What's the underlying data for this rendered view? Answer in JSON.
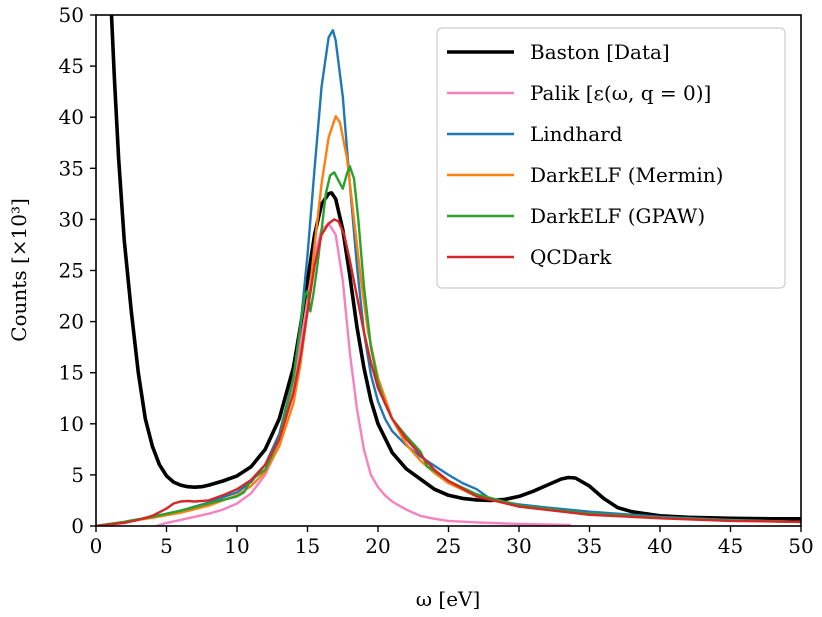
{
  "chart_data": {
    "type": "line",
    "xlabel": "ω [eV]",
    "ylabel": "Counts [×10³]",
    "xlim": [
      0,
      50
    ],
    "ylim": [
      0,
      50
    ],
    "xticks": [
      "0",
      "5",
      "10",
      "15",
      "20",
      "25",
      "30",
      "35",
      "40",
      "45",
      "50"
    ],
    "yticks": [
      "0",
      "5",
      "10",
      "15",
      "20",
      "25",
      "30",
      "35",
      "40",
      "45",
      "50"
    ],
    "legend_position": "top-right",
    "series": [
      {
        "name": "Baston [Data]",
        "color": "#000000",
        "width": 3.6,
        "x": [
          1.1,
          1.3,
          1.6,
          2.0,
          2.5,
          3.0,
          3.5,
          4.0,
          4.5,
          5.0,
          5.5,
          6.0,
          6.5,
          7.0,
          7.5,
          8.0,
          9.0,
          10.0,
          11.0,
          12.0,
          13.0,
          14.0,
          14.5,
          15.0,
          15.5,
          16.0,
          16.5,
          16.7,
          17.0,
          17.5,
          18.0,
          18.5,
          19.0,
          19.5,
          20.0,
          21.0,
          22.0,
          23.0,
          24.0,
          25.0,
          26.0,
          27.0,
          28.0,
          29.0,
          30.0,
          31.0,
          32.0,
          33.0,
          33.5,
          34.0,
          35.0,
          36.0,
          37.0,
          38.0,
          40.0,
          42.0,
          45.0,
          48.0,
          50.0
        ],
        "y": [
          50.0,
          44.0,
          36.0,
          28.0,
          21.0,
          15.0,
          10.5,
          7.8,
          6.0,
          4.9,
          4.3,
          4.0,
          3.85,
          3.8,
          3.85,
          4.0,
          4.4,
          4.9,
          5.8,
          7.5,
          10.5,
          15.5,
          19.5,
          24.0,
          28.5,
          31.5,
          32.5,
          32.6,
          32.0,
          29.0,
          24.5,
          19.5,
          15.5,
          12.3,
          10.0,
          7.2,
          5.6,
          4.6,
          3.6,
          3.0,
          2.7,
          2.55,
          2.5,
          2.6,
          2.9,
          3.4,
          4.0,
          4.6,
          4.75,
          4.7,
          3.9,
          2.7,
          1.8,
          1.4,
          1.0,
          0.85,
          0.75,
          0.7,
          0.7
        ]
      },
      {
        "name": "Palik [ε(ω, q = 0)]",
        "color": "#f781bf",
        "width": 2.4,
        "x": [
          4.3,
          5.0,
          6.0,
          7.0,
          8.0,
          9.0,
          10.0,
          11.0,
          12.0,
          13.0,
          14.0,
          15.0,
          15.5,
          16.0,
          16.5,
          17.0,
          17.5,
          18.0,
          18.5,
          19.0,
          19.5,
          20.0,
          20.5,
          21.0,
          22.0,
          23.0,
          24.0,
          25.0,
          27.0,
          30.0,
          33.6
        ],
        "y": [
          0.0,
          0.3,
          0.6,
          0.9,
          1.2,
          1.6,
          2.2,
          3.2,
          5.0,
          8.0,
          13.5,
          22.0,
          26.5,
          29.0,
          29.6,
          28.5,
          24.0,
          17.0,
          11.5,
          7.5,
          5.0,
          3.8,
          3.0,
          2.4,
          1.6,
          1.0,
          0.7,
          0.5,
          0.35,
          0.2,
          0.1
        ]
      },
      {
        "name": "Lindhard",
        "color": "#1f77b4",
        "width": 2.4,
        "x": [
          0.0,
          2.0,
          4.0,
          6.0,
          8.0,
          10.0,
          11.0,
          12.0,
          13.0,
          14.0,
          14.5,
          15.0,
          15.5,
          16.0,
          16.5,
          16.8,
          17.0,
          17.5,
          18.0,
          18.5,
          19.0,
          19.5,
          20.0,
          20.5,
          21.0,
          22.0,
          23.0,
          24.0,
          25.0,
          26.0,
          27.0,
          27.5,
          28.0,
          30.0,
          32.0,
          35.0,
          40.0,
          45.0,
          50.0
        ],
        "y": [
          0.0,
          0.4,
          0.9,
          1.5,
          2.3,
          3.3,
          4.3,
          6.0,
          9.0,
          14.5,
          19.5,
          26.5,
          35.0,
          43.0,
          47.8,
          48.5,
          47.5,
          42.0,
          33.5,
          25.5,
          19.0,
          14.8,
          12.2,
          10.5,
          9.3,
          7.9,
          6.8,
          5.9,
          5.0,
          4.2,
          3.6,
          3.1,
          2.6,
          2.1,
          1.8,
          1.4,
          0.9,
          0.6,
          0.4
        ]
      },
      {
        "name": "DarkELF (Mermin)",
        "color": "#ff7f0e",
        "width": 2.4,
        "x": [
          0.0,
          2.0,
          4.0,
          6.0,
          8.0,
          10.0,
          11.0,
          12.0,
          13.0,
          14.0,
          14.5,
          15.0,
          15.5,
          16.0,
          16.5,
          17.0,
          17.3,
          17.8,
          18.3,
          18.8,
          19.3,
          20.0,
          21.0,
          22.0,
          23.0,
          24.0,
          25.0,
          27.0,
          30.0,
          35.0,
          40.0,
          45.0,
          50.0
        ],
        "y": [
          0.0,
          0.4,
          0.8,
          1.3,
          2.0,
          3.0,
          3.9,
          5.3,
          7.8,
          12.0,
          15.8,
          21.0,
          27.5,
          33.5,
          38.0,
          40.1,
          39.5,
          36.0,
          30.0,
          24.0,
          19.0,
          14.5,
          10.5,
          8.0,
          6.4,
          5.2,
          4.2,
          2.9,
          1.9,
          1.2,
          0.8,
          0.55,
          0.4
        ]
      },
      {
        "name": "DarkELF (GPAW)",
        "color": "#2ca02c",
        "width": 2.4,
        "x": [
          0.0,
          2.0,
          4.0,
          6.0,
          8.0,
          10.0,
          10.5,
          11.0,
          11.5,
          12.0,
          13.0,
          14.0,
          14.5,
          14.8,
          15.0,
          15.2,
          15.4,
          15.7,
          16.0,
          16.3,
          16.6,
          16.9,
          17.2,
          17.5,
          17.8,
          18.0,
          18.3,
          18.6,
          19.0,
          19.5,
          20.0,
          20.5,
          21.0,
          22.0,
          23.0,
          23.5,
          24.0,
          25.0,
          27.0,
          30.0,
          35.0,
          40.0,
          45.0,
          50.0
        ],
        "y": [
          0.0,
          0.4,
          0.9,
          1.5,
          2.2,
          2.9,
          3.3,
          4.5,
          5.0,
          5.5,
          8.5,
          14.5,
          19.5,
          22.5,
          23.0,
          21.0,
          22.5,
          25.5,
          29.0,
          32.5,
          34.3,
          34.6,
          33.8,
          33.0,
          34.5,
          35.2,
          34.0,
          30.0,
          23.5,
          17.5,
          14.0,
          12.0,
          10.5,
          8.8,
          7.3,
          5.8,
          5.4,
          4.4,
          3.1,
          2.0,
          1.2,
          0.8,
          0.55,
          0.4
        ]
      },
      {
        "name": "QCDark",
        "color": "#d62728",
        "width": 2.4,
        "x": [
          0.0,
          2.0,
          3.0,
          4.0,
          5.0,
          5.5,
          6.0,
          6.5,
          7.0,
          8.0,
          9.0,
          10.0,
          11.0,
          12.0,
          13.0,
          14.0,
          14.5,
          15.0,
          15.5,
          16.0,
          16.5,
          16.9,
          17.2,
          17.6,
          18.0,
          18.5,
          19.0,
          19.5,
          20.0,
          21.0,
          22.0,
          23.0,
          24.0,
          25.0,
          27.0,
          30.0,
          35.0,
          40.0,
          45.0,
          50.0
        ],
        "y": [
          0.0,
          0.3,
          0.6,
          1.0,
          1.7,
          2.2,
          2.4,
          2.45,
          2.4,
          2.5,
          3.0,
          3.6,
          4.5,
          6.0,
          8.5,
          13.0,
          16.5,
          21.0,
          25.5,
          28.5,
          29.6,
          30.0,
          29.8,
          28.5,
          26.0,
          22.5,
          19.0,
          16.0,
          13.5,
          10.5,
          8.5,
          7.0,
          5.5,
          4.4,
          2.9,
          1.9,
          1.1,
          0.75,
          0.5,
          0.4
        ]
      }
    ]
  }
}
